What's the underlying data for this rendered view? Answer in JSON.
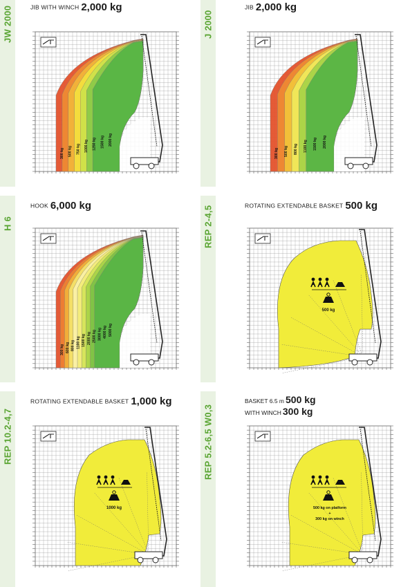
{
  "colors": {
    "accent_green": "#5aa533",
    "grid": "#9a9a9a",
    "yellow_zone": "#f1ec3a",
    "green_zone": "#58b545",
    "orange_zone": "#f0a23a",
    "red_zone": "#e3532d"
  },
  "panels": [
    {
      "id": "jw2000",
      "side_label": "JW 2000",
      "caption_small": "JIB WITH WINCH",
      "caption_big": "2,000 kg",
      "icon": "jib-winch-icon",
      "zone_labels": [
        "300 kg",
        "500 kg",
        "750 kg",
        "1000 kg",
        "1250 kg",
        "1500 kg",
        "2000 kg"
      ]
    },
    {
      "id": "j2000",
      "side_label": "J 2000",
      "caption_small": "JIB",
      "caption_big": "2,000 kg",
      "icon": "jib-icon",
      "zone_labels": [
        "300 kg",
        "500 kg",
        "800 kg",
        "1100 kg",
        "1500 kg",
        "2000 kg"
      ]
    },
    {
      "id": "h6",
      "side_label": "H 6",
      "caption_small": "HOOK",
      "caption_big": "6,000 kg",
      "icon": "hook-icon",
      "zone_labels": [
        "300 kg",
        "600 kg",
        "800 kg",
        "1100 kg",
        "1500 kg",
        "2000 kg",
        "2500 kg",
        "3000 kg",
        "4000 kg",
        "5000 kg"
      ]
    },
    {
      "id": "rep245",
      "side_label": "REP 2-4,5",
      "caption_small": "ROTATING EXTENDABLE BASKET",
      "caption_big": "500 kg",
      "icon": "basket-icon",
      "load_text": "500 kg"
    },
    {
      "id": "rep10247",
      "side_label": "REP 10.2-4,7",
      "caption_small": "ROTATING EXTENDABLE BASKET",
      "caption_big": "1,000 kg",
      "icon": "basket-icon",
      "load_text": "1000 kg"
    },
    {
      "id": "rep5265",
      "side_label": "REP 5.2-6,5 W0,3",
      "caption_small_1": "BASKET 6.5 m",
      "caption_big_1": "500 kg",
      "caption_small_2": "WITH WINCH",
      "caption_big_2": "300 kg",
      "icon": "basket-icon",
      "load_line_1": "500 kg on platform",
      "load_line_2": "+",
      "load_line_3": "300 kg on winch"
    }
  ]
}
